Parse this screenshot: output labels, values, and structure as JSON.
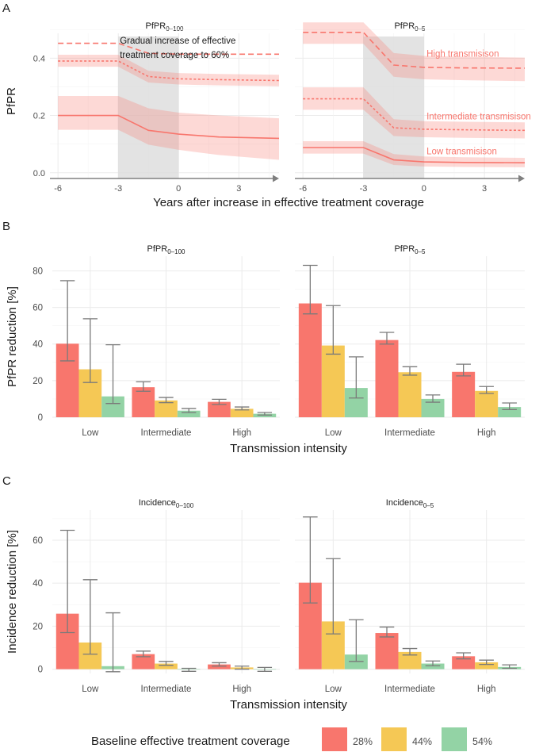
{
  "figure": {
    "legend_title": "Baseline effective treatment coverage",
    "legend_items": [
      {
        "label": "28%",
        "color": "#F8766D"
      },
      {
        "label": "44%",
        "color": "#F5C855"
      },
      {
        "label": "54%",
        "color": "#93D3A5"
      }
    ]
  },
  "chart_data": [
    {
      "id": "A",
      "panel_label": "A",
      "type": "line",
      "xlabel": "Years after increase in effective treatment coverage",
      "ylabel": "PfPR",
      "xlim": [
        -6.4,
        5.0
      ],
      "ylim": [
        -0.02,
        0.52
      ],
      "xticks": [
        -6,
        -3,
        0,
        3
      ],
      "xtick_labels": [
        "-6",
        "-3",
        "0",
        "3"
      ],
      "yticks": [
        0.0,
        0.2,
        0.4
      ],
      "ytick_labels": [
        "0.0",
        "0.2",
        "0.4"
      ],
      "shade": [
        -3,
        0
      ],
      "line_color": "#F8766D",
      "band_color": "#F8766D",
      "x": [
        -6,
        -3,
        -1.5,
        0,
        2,
        5
      ],
      "facets": [
        {
          "title_main": "PfPR",
          "title_sub": "0–100",
          "annotation_lines": [
            "Gradual increase of effective",
            "treatment coverage to 60%"
          ],
          "series": [
            {
              "name": "High",
              "dash": "long",
              "values": [
                0.452,
                0.452,
                0.417,
                0.414,
                0.414,
                0.414
              ],
              "lower": [
                0.452,
                0.452,
                0.417,
                0.414,
                0.414,
                0.414
              ],
              "upper": [
                0.452,
                0.452,
                0.417,
                0.414,
                0.414,
                0.414
              ]
            },
            {
              "name": "Intermediate",
              "dash": "short",
              "values": [
                0.39,
                0.39,
                0.336,
                0.328,
                0.325,
                0.322
              ],
              "lower": [
                0.37,
                0.37,
                0.315,
                0.308,
                0.305,
                0.302
              ],
              "upper": [
                0.412,
                0.412,
                0.356,
                0.348,
                0.345,
                0.342
              ]
            },
            {
              "name": "Low",
              "dash": "solid",
              "values": [
                0.2,
                0.2,
                0.148,
                0.135,
                0.125,
                0.12
              ],
              "lower": [
                0.15,
                0.15,
                0.098,
                0.08,
                0.062,
                0.045
              ],
              "upper": [
                0.268,
                0.268,
                0.225,
                0.21,
                0.2,
                0.19
              ]
            }
          ],
          "series_labels": []
        },
        {
          "title_main": "PfPR",
          "title_sub": "0–5",
          "annotation_lines": [],
          "series": [
            {
              "name": "High",
              "dash": "long",
              "values": [
                0.49,
                0.49,
                0.376,
                0.368,
                0.366,
                0.365
              ],
              "lower": [
                0.45,
                0.45,
                0.335,
                0.326,
                0.323,
                0.32
              ],
              "upper": [
                0.525,
                0.525,
                0.418,
                0.408,
                0.405,
                0.402
              ]
            },
            {
              "name": "Intermediate",
              "dash": "short",
              "values": [
                0.258,
                0.258,
                0.157,
                0.152,
                0.15,
                0.148
              ],
              "lower": [
                0.22,
                0.22,
                0.128,
                0.124,
                0.122,
                0.12
              ],
              "upper": [
                0.298,
                0.298,
                0.187,
                0.18,
                0.178,
                0.176
              ]
            },
            {
              "name": "Low",
              "dash": "solid",
              "values": [
                0.088,
                0.088,
                0.045,
                0.038,
                0.036,
                0.035
              ],
              "lower": [
                0.067,
                0.067,
                0.027,
                0.022,
                0.02,
                0.019
              ],
              "upper": [
                0.11,
                0.11,
                0.065,
                0.057,
                0.054,
                0.052
              ]
            }
          ],
          "series_labels": [
            {
              "text": "High transmisison",
              "x": 0.05,
              "y": 0.405
            },
            {
              "text": "Intermediate transmisison",
              "x": 0.05,
              "y": 0.187
            },
            {
              "text": "Low transmisison",
              "x": 0.05,
              "y": 0.065
            }
          ]
        }
      ]
    },
    {
      "id": "B",
      "panel_label": "B",
      "type": "bar",
      "xlabel": "Transmission intensity",
      "ylabel": "PfPR reduction [%]",
      "ylim": [
        0,
        88
      ],
      "yticks": [
        0,
        20,
        40,
        60,
        80
      ],
      "categories": [
        "Low",
        "Intermediate",
        "High"
      ],
      "series_names": [
        "28%",
        "44%",
        "54%"
      ],
      "facets": [
        {
          "title_main": "PfPR",
          "title_sub": "0–100",
          "series": [
            {
              "name": "28%",
              "values": [
                40.2,
                16.4,
                8.4
              ],
              "lower": [
                30.8,
                14.2,
                7.0
              ],
              "upper": [
                74.6,
                19.4,
                9.8
              ]
            },
            {
              "name": "44%",
              "values": [
                26.2,
                9.2,
                4.6
              ],
              "lower": [
                19.0,
                8.0,
                4.0
              ],
              "upper": [
                53.8,
                10.8,
                5.6
              ]
            },
            {
              "name": "54%",
              "values": [
                11.4,
                3.6,
                1.9
              ],
              "lower": [
                7.5,
                2.6,
                1.2
              ],
              "upper": [
                39.6,
                4.8,
                2.6
              ]
            }
          ]
        },
        {
          "title_main": "PfPR",
          "title_sub": "0–5",
          "series": [
            {
              "name": "28%",
              "values": [
                62.2,
                42.2,
                24.8
              ],
              "lower": [
                56.5,
                40.0,
                22.6
              ],
              "upper": [
                83.0,
                46.4,
                29.0
              ]
            },
            {
              "name": "44%",
              "values": [
                39.2,
                24.6,
                14.4
              ],
              "lower": [
                34.5,
                23.0,
                13.0
              ],
              "upper": [
                61.0,
                27.6,
                16.8
              ]
            },
            {
              "name": "54%",
              "values": [
                16.0,
                10.0,
                5.6
              ],
              "lower": [
                10.5,
                8.2,
                4.2
              ],
              "upper": [
                33.0,
                12.2,
                7.8
              ]
            }
          ]
        }
      ]
    },
    {
      "id": "C",
      "panel_label": "C",
      "type": "bar",
      "xlabel": "Transmission intensity",
      "ylabel": "Incidence reduction [%]",
      "ylim": [
        -2,
        74
      ],
      "yticks": [
        0,
        20,
        40,
        60
      ],
      "categories": [
        "Low",
        "Intermediate",
        "High"
      ],
      "series_names": [
        "28%",
        "44%",
        "54%"
      ],
      "facets": [
        {
          "title_main": "Incidence",
          "title_sub": "0–100",
          "series": [
            {
              "name": "28%",
              "values": [
                25.8,
                7.0,
                2.2
              ],
              "lower": [
                17.0,
                5.8,
                1.4
              ],
              "upper": [
                64.6,
                8.4,
                3.0
              ]
            },
            {
              "name": "44%",
              "values": [
                12.4,
                2.6,
                0.8
              ],
              "lower": [
                7.0,
                1.8,
                0.0
              ],
              "upper": [
                41.6,
                3.6,
                1.4
              ]
            },
            {
              "name": "54%",
              "values": [
                1.4,
                -0.2,
                -0.2
              ],
              "lower": [
                -1.2,
                -1.0,
                -1.0
              ],
              "upper": [
                26.2,
                0.4,
                0.8
              ]
            }
          ]
        },
        {
          "title_main": "Incidence",
          "title_sub": "0–5",
          "series": [
            {
              "name": "28%",
              "values": [
                40.2,
                16.8,
                6.0
              ],
              "lower": [
                30.8,
                15.0,
                4.8
              ],
              "upper": [
                70.8,
                19.6,
                7.6
              ]
            },
            {
              "name": "44%",
              "values": [
                22.2,
                8.0,
                3.2
              ],
              "lower": [
                16.4,
                6.6,
                2.2
              ],
              "upper": [
                51.4,
                9.6,
                4.2
              ]
            },
            {
              "name": "54%",
              "values": [
                6.8,
                2.6,
                1.0
              ],
              "lower": [
                3.6,
                1.6,
                0.4
              ],
              "upper": [
                23.0,
                3.8,
                2.0
              ]
            }
          ]
        }
      ]
    }
  ]
}
